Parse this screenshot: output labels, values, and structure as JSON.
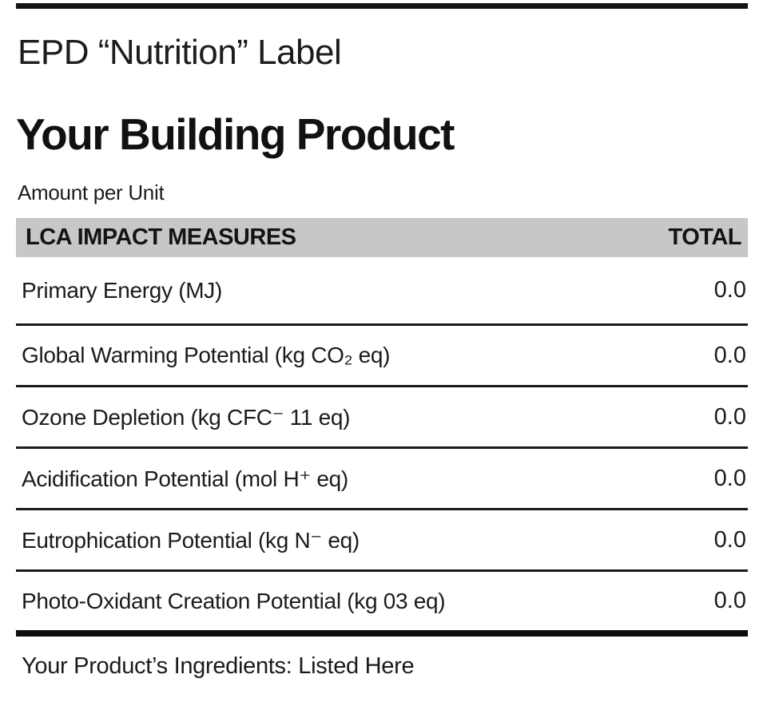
{
  "header": {
    "label_title": "EPD “Nutrition” Label",
    "product_title": "Your Building Product",
    "amount_per_unit": "Amount per Unit"
  },
  "table": {
    "header_left": "LCA IMPACT MEASURES",
    "header_right": "TOTAL",
    "rows": [
      {
        "measure": "Primary Energy (MJ)",
        "total": "0.0"
      },
      {
        "measure": "Global Warming Potential (kg CO₂ eq)",
        "total": "0.0"
      },
      {
        "measure": "Ozone Depletion (kg CFC⁻ 11 eq)",
        "total": "0.0"
      },
      {
        "measure": "Acidification Potential (mol H⁺ eq)",
        "total": "0.0"
      },
      {
        "measure": "Eutrophication Potential (kg N⁻ eq)",
        "total": "0.0"
      },
      {
        "measure": "Photo-Oxidant Creation Potential (kg 03 eq)",
        "total": "0.0"
      }
    ]
  },
  "footer": {
    "text": "Your Product’s Ingredients: Listed Here"
  },
  "colors": {
    "background": "#ffffff",
    "header_bg": "#c7c7c7",
    "rule": "#1b1b1b",
    "text": "#1b1b1b"
  }
}
